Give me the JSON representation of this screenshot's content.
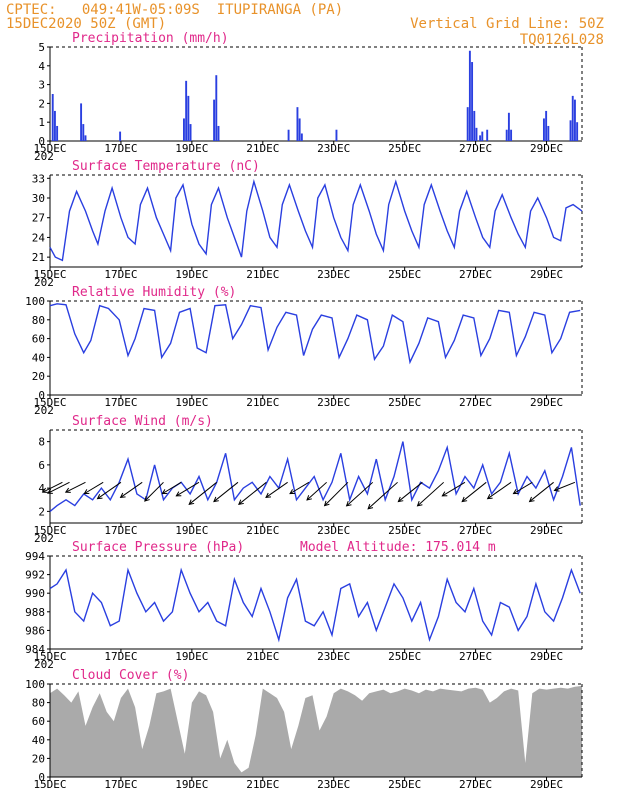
{
  "header": {
    "line1_left": "CPTEC:   049:41W-05:09S  ITUPIRANGA (PA)",
    "line2_left": "15DEC2020 50Z (GMT)",
    "line1_right": "Vertical Grid Line: 50Z",
    "line2_right": "TQ0126L028"
  },
  "colors": {
    "series": "#2a3fe0",
    "title": "#e0288a",
    "header": "#e8922a",
    "cloud": "#aaaaaa"
  },
  "x_ticks": [
    "15DEC",
    "17DEC",
    "19DEC",
    "21DEC",
    "23DEC",
    "25DEC",
    "27DEC",
    "29DEC"
  ],
  "x_tick_days": [
    0,
    2,
    4,
    6,
    8,
    10,
    12,
    14
  ],
  "x_extra": "202",
  "x_range_days": [
    0,
    15
  ],
  "chart_data": [
    {
      "type": "bar",
      "title": "Precipitation (mm/h)",
      "ylabel": "mm/h",
      "ylim": [
        0,
        5
      ],
      "yticks": [
        0,
        1,
        2,
        3,
        4,
        5
      ],
      "events": [
        {
          "day": 0.05,
          "values": [
            2.5,
            1.6,
            0.8
          ]
        },
        {
          "day": 0.85,
          "values": [
            2.0,
            0.9,
            0.3
          ]
        },
        {
          "day": 1.95,
          "values": [
            0.5
          ]
        },
        {
          "day": 3.75,
          "values": [
            1.2,
            3.2,
            2.4,
            0.9
          ]
        },
        {
          "day": 4.6,
          "values": [
            2.2,
            3.5,
            0.8
          ]
        },
        {
          "day": 6.7,
          "values": [
            0.6
          ]
        },
        {
          "day": 6.95,
          "values": [
            1.8,
            1.2,
            0.4
          ]
        },
        {
          "day": 8.05,
          "values": [
            0.6
          ]
        },
        {
          "day": 11.75,
          "values": [
            1.8,
            4.8,
            4.2,
            1.6,
            0.7
          ]
        },
        {
          "day": 12.1,
          "values": [
            0.3,
            0.5
          ]
        },
        {
          "day": 12.3,
          "values": [
            0.6
          ]
        },
        {
          "day": 12.85,
          "values": [
            0.6,
            1.5,
            0.6
          ]
        },
        {
          "day": 13.9,
          "values": [
            1.2,
            1.6,
            0.8
          ]
        },
        {
          "day": 14.65,
          "values": [
            1.1,
            2.4,
            2.2,
            1.0
          ]
        }
      ]
    },
    {
      "type": "line",
      "title": "Surface Temperature (nC)",
      "ylabel": "nC",
      "ylim": [
        19.5,
        33.5
      ],
      "yticks": [
        21,
        24,
        27,
        30,
        33
      ],
      "series": [
        {
          "name": "",
          "x": [
            0,
            0.15,
            0.35,
            0.55,
            0.75,
            1.0,
            1.2,
            1.35,
            1.55,
            1.75,
            2.0,
            2.2,
            2.4,
            2.55,
            2.75,
            3.0,
            3.2,
            3.4,
            3.55,
            3.75,
            4.0,
            4.2,
            4.4,
            4.55,
            4.75,
            5.0,
            5.2,
            5.4,
            5.55,
            5.75,
            6.0,
            6.2,
            6.4,
            6.55,
            6.75,
            7.0,
            7.2,
            7.4,
            7.55,
            7.75,
            8.0,
            8.2,
            8.4,
            8.55,
            8.75,
            9.0,
            9.2,
            9.4,
            9.55,
            9.75,
            10.0,
            10.2,
            10.4,
            10.55,
            10.75,
            11.0,
            11.2,
            11.4,
            11.55,
            11.75,
            12.0,
            12.2,
            12.4,
            12.55,
            12.75,
            13.0,
            13.2,
            13.4,
            13.55,
            13.75,
            14.0,
            14.2,
            14.4,
            14.55,
            14.75,
            15.0
          ],
          "y": [
            22.5,
            21,
            20.5,
            28,
            31,
            28,
            25,
            23,
            28,
            31.5,
            27,
            24,
            23,
            29,
            31.5,
            27,
            24.5,
            22,
            30,
            32,
            26,
            23,
            21.5,
            29,
            31.5,
            27,
            24,
            21,
            28,
            32.5,
            28,
            24,
            22.5,
            29,
            32,
            28,
            25,
            22.5,
            30,
            32,
            27,
            24,
            22,
            29,
            32,
            28,
            24.5,
            22,
            29,
            32.5,
            28,
            25,
            22.5,
            29,
            32,
            28,
            25,
            22.5,
            28,
            31,
            27,
            24,
            22.5,
            28,
            30.5,
            27,
            24.5,
            22.5,
            28,
            30,
            27,
            24,
            23.5,
            28.5,
            29,
            28
          ]
        }
      ]
    },
    {
      "type": "line",
      "title": "Relative Humidity (%)",
      "ylabel": "%",
      "ylim": [
        0,
        100
      ],
      "yticks": [
        0,
        20,
        40,
        60,
        80,
        100
      ],
      "series": [
        {
          "name": "",
          "x": [
            0,
            0.2,
            0.45,
            0.7,
            0.95,
            1.15,
            1.4,
            1.65,
            1.95,
            2.2,
            2.4,
            2.65,
            2.95,
            3.15,
            3.4,
            3.65,
            3.95,
            4.15,
            4.4,
            4.65,
            4.95,
            5.15,
            5.4,
            5.65,
            5.95,
            6.15,
            6.4,
            6.65,
            6.95,
            7.15,
            7.4,
            7.65,
            7.95,
            8.15,
            8.4,
            8.65,
            8.95,
            9.15,
            9.4,
            9.65,
            9.95,
            10.15,
            10.4,
            10.65,
            10.95,
            11.15,
            11.4,
            11.65,
            11.95,
            12.15,
            12.4,
            12.65,
            12.95,
            13.15,
            13.4,
            13.65,
            13.95,
            14.15,
            14.4,
            14.65,
            14.95
          ],
          "y": [
            95,
            97,
            96,
            65,
            45,
            58,
            95,
            92,
            80,
            42,
            60,
            92,
            90,
            40,
            55,
            88,
            92,
            50,
            45,
            95,
            96,
            60,
            75,
            95,
            93,
            48,
            72,
            88,
            85,
            42,
            70,
            85,
            82,
            40,
            60,
            85,
            80,
            38,
            52,
            85,
            78,
            35,
            55,
            82,
            78,
            40,
            58,
            85,
            82,
            42,
            60,
            90,
            88,
            42,
            62,
            88,
            85,
            45,
            60,
            88,
            90
          ]
        }
      ]
    },
    {
      "type": "line",
      "title": "Surface Wind (m/s)",
      "ylabel": "m/s",
      "ylim": [
        1,
        9
      ],
      "yticks": [
        2,
        4,
        6,
        8
      ],
      "series": [
        {
          "name": "",
          "x": [
            0,
            0.2,
            0.45,
            0.7,
            0.95,
            1.2,
            1.45,
            1.7,
            1.95,
            2.2,
            2.45,
            2.7,
            2.95,
            3.2,
            3.45,
            3.7,
            3.95,
            4.2,
            4.45,
            4.7,
            4.95,
            5.2,
            5.45,
            5.7,
            5.95,
            6.2,
            6.45,
            6.7,
            6.95,
            7.2,
            7.45,
            7.7,
            7.95,
            8.2,
            8.45,
            8.7,
            8.95,
            9.2,
            9.45,
            9.7,
            9.95,
            10.2,
            10.45,
            10.7,
            10.95,
            11.2,
            11.45,
            11.7,
            11.95,
            12.2,
            12.45,
            12.7,
            12.95,
            13.2,
            13.45,
            13.7,
            13.95,
            14.2,
            14.45,
            14.7,
            14.95
          ],
          "y": [
            2,
            2.5,
            3,
            2.5,
            3.5,
            3,
            4,
            3,
            4.5,
            6.5,
            3.5,
            3,
            6,
            3,
            4,
            4.5,
            3.5,
            5,
            3,
            4.5,
            7,
            3,
            4,
            4.5,
            3.5,
            5,
            4,
            6.5,
            3,
            4,
            5,
            3,
            4.5,
            7,
            3,
            5,
            3.5,
            6.5,
            3,
            5,
            8,
            3,
            4.5,
            4,
            5.5,
            7.5,
            3.5,
            5,
            4,
            6,
            3.5,
            4.5,
            7,
            3.5,
            5,
            4,
            5.5,
            3,
            5,
            7.5,
            2.5
          ]
        }
      ],
      "arrows": [
        {
          "day": 0.35,
          "u": -1,
          "v": -0.5,
          "len": 1.0
        },
        {
          "day": 0.55,
          "u": -1,
          "v": -0.5,
          "len": 1.1
        },
        {
          "day": 1.0,
          "u": -1,
          "v": -0.5,
          "len": 1.0
        },
        {
          "day": 1.5,
          "u": -1,
          "v": -0.6,
          "len": 1.0
        },
        {
          "day": 2.0,
          "u": -1,
          "v": -0.7,
          "len": 1.3
        },
        {
          "day": 2.6,
          "u": -1,
          "v": -0.7,
          "len": 1.2
        },
        {
          "day": 3.2,
          "u": -0.8,
          "v": -0.8,
          "len": 1.2
        },
        {
          "day": 3.7,
          "u": -1,
          "v": -0.6,
          "len": 1.0
        },
        {
          "day": 4.2,
          "u": -1,
          "v": -0.6,
          "len": 1.2
        },
        {
          "day": 4.7,
          "u": -1,
          "v": -0.8,
          "len": 1.6
        },
        {
          "day": 5.3,
          "u": -1,
          "v": -0.8,
          "len": 1.4
        },
        {
          "day": 6.1,
          "u": -1,
          "v": -0.8,
          "len": 1.6
        },
        {
          "day": 6.7,
          "u": -1,
          "v": -0.7,
          "len": 1.2
        },
        {
          "day": 7.3,
          "u": -1,
          "v": -0.6,
          "len": 1.0
        },
        {
          "day": 7.8,
          "u": -1,
          "v": -0.9,
          "len": 1.2
        },
        {
          "day": 8.4,
          "u": -0.9,
          "v": -0.9,
          "len": 1.5
        },
        {
          "day": 9.1,
          "u": -1,
          "v": -0.9,
          "len": 1.6
        },
        {
          "day": 9.8,
          "u": -1,
          "v": -0.9,
          "len": 1.8
        },
        {
          "day": 10.5,
          "u": -1,
          "v": -0.8,
          "len": 1.4
        },
        {
          "day": 11.1,
          "u": -1,
          "v": -0.9,
          "len": 1.6
        },
        {
          "day": 11.7,
          "u": -1,
          "v": -0.6,
          "len": 1.2
        },
        {
          "day": 12.3,
          "u": -1,
          "v": -0.8,
          "len": 1.4
        },
        {
          "day": 13.0,
          "u": -1,
          "v": -0.7,
          "len": 1.3
        },
        {
          "day": 13.6,
          "u": -1,
          "v": -0.6,
          "len": 1.0
        },
        {
          "day": 14.2,
          "u": -1,
          "v": -0.8,
          "len": 1.4
        },
        {
          "day": 14.8,
          "u": -1,
          "v": -0.4,
          "len": 1.0
        }
      ]
    },
    {
      "type": "line",
      "title": "Surface Pressure (hPa)",
      "subtitle": "Model Altitude: 175.014 m",
      "ylabel": "hPa",
      "ylim": [
        984,
        994
      ],
      "yticks": [
        984,
        986,
        988,
        990,
        992,
        994
      ],
      "series": [
        {
          "name": "",
          "x": [
            0,
            0.2,
            0.45,
            0.7,
            0.95,
            1.2,
            1.45,
            1.7,
            1.95,
            2.2,
            2.45,
            2.7,
            2.95,
            3.2,
            3.45,
            3.7,
            3.95,
            4.2,
            4.45,
            4.7,
            4.95,
            5.2,
            5.45,
            5.7,
            5.95,
            6.2,
            6.45,
            6.7,
            6.95,
            7.2,
            7.45,
            7.7,
            7.95,
            8.2,
            8.45,
            8.7,
            8.95,
            9.2,
            9.45,
            9.7,
            9.95,
            10.2,
            10.45,
            10.7,
            10.95,
            11.2,
            11.45,
            11.7,
            11.95,
            12.2,
            12.45,
            12.7,
            12.95,
            13.2,
            13.45,
            13.7,
            13.95,
            14.2,
            14.45,
            14.7,
            14.95
          ],
          "y": [
            990.5,
            991,
            992.5,
            988,
            987,
            990,
            989,
            986.5,
            987,
            992.5,
            990,
            988,
            989,
            987,
            988,
            992.5,
            990,
            988,
            989,
            987,
            986.5,
            991.5,
            989,
            987.5,
            990.5,
            988,
            985,
            989.5,
            991.5,
            987,
            986.5,
            988,
            985.5,
            990.5,
            991,
            987.5,
            989,
            986,
            988.5,
            991,
            989.5,
            987,
            989,
            985,
            987.5,
            991.5,
            989,
            988,
            990.5,
            987,
            985.5,
            989,
            988.5,
            986,
            987.5,
            991,
            988,
            987,
            989.5,
            992.5,
            990
          ]
        }
      ]
    },
    {
      "type": "area",
      "title": "Cloud Cover (%)",
      "ylabel": "%",
      "ylim": [
        0,
        100
      ],
      "yticks": [
        0,
        20,
        40,
        60,
        80,
        100
      ],
      "series": [
        {
          "name": "",
          "x": [
            0,
            0.2,
            0.4,
            0.6,
            0.8,
            1.0,
            1.2,
            1.4,
            1.6,
            1.8,
            2.0,
            2.2,
            2.4,
            2.6,
            2.8,
            3.0,
            3.2,
            3.4,
            3.6,
            3.8,
            4.0,
            4.2,
            4.4,
            4.6,
            4.8,
            5.0,
            5.2,
            5.4,
            5.6,
            5.8,
            6.0,
            6.2,
            6.4,
            6.6,
            6.8,
            7.0,
            7.2,
            7.4,
            7.6,
            7.8,
            8.0,
            8.2,
            8.4,
            8.6,
            8.8,
            9.0,
            9.2,
            9.4,
            9.6,
            9.8,
            10.0,
            10.2,
            10.4,
            10.6,
            10.8,
            11.0,
            11.2,
            11.4,
            11.6,
            11.8,
            12.0,
            12.2,
            12.4,
            12.6,
            12.8,
            13.0,
            13.2,
            13.4,
            13.6,
            13.8,
            14.0,
            14.2,
            14.4,
            14.6,
            14.8,
            15.0
          ],
          "y": [
            90,
            95,
            88,
            80,
            92,
            55,
            75,
            90,
            70,
            60,
            85,
            95,
            75,
            30,
            55,
            90,
            92,
            95,
            60,
            25,
            80,
            92,
            88,
            70,
            20,
            40,
            15,
            5,
            10,
            45,
            95,
            90,
            85,
            70,
            30,
            55,
            85,
            88,
            50,
            65,
            90,
            95,
            92,
            88,
            82,
            90,
            92,
            94,
            90,
            92,
            95,
            93,
            90,
            94,
            92,
            95,
            94,
            93,
            92,
            95,
            96,
            94,
            80,
            85,
            92,
            95,
            93,
            15,
            90,
            95,
            94,
            95,
            96,
            95,
            97,
            98
          ]
        }
      ]
    }
  ]
}
